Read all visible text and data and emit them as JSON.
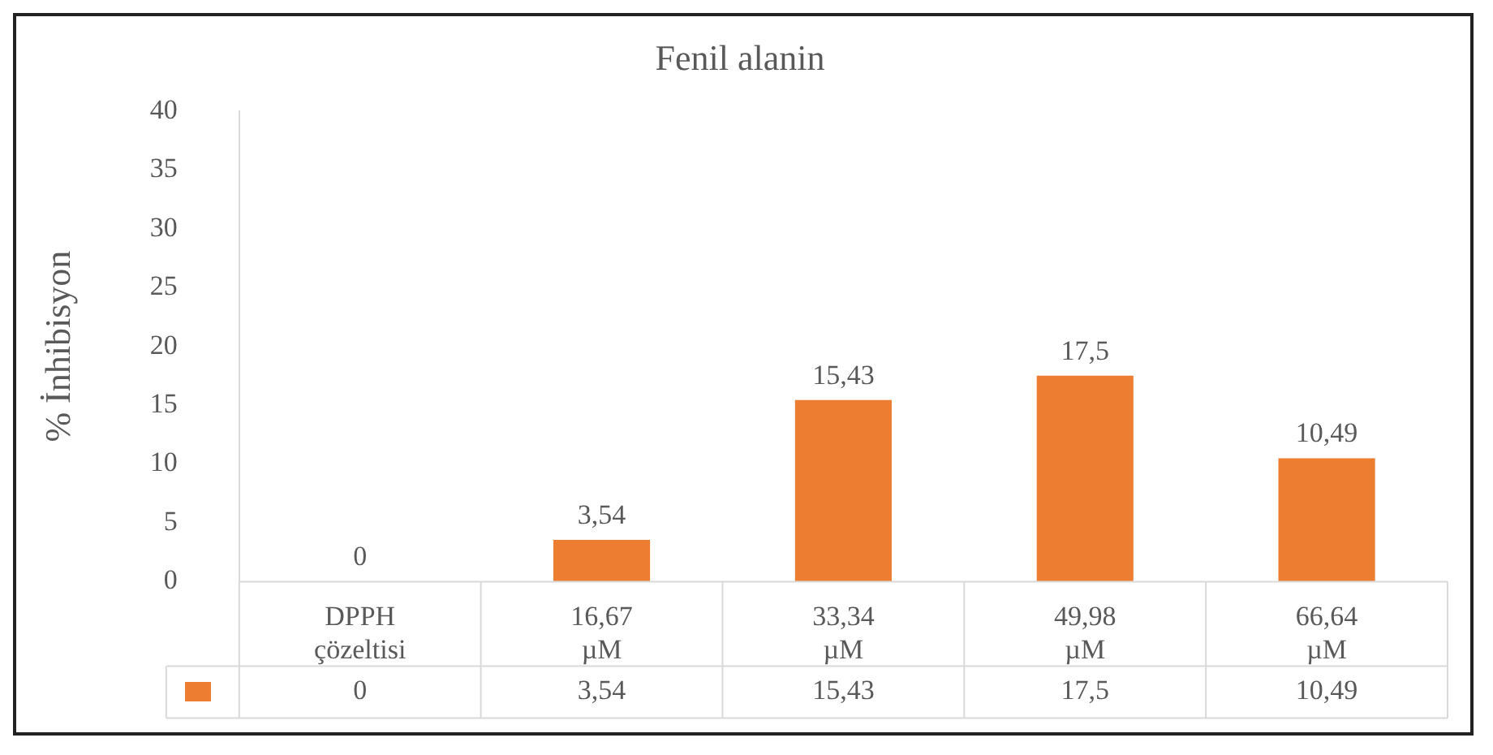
{
  "chart_data": {
    "type": "bar",
    "title": "Fenil alanin",
    "ylabel": "% İnhibisyon",
    "categories": [
      "DPPH çözeltisi",
      "16,67 µM",
      "33,34 µM",
      "49,98 µM",
      "66,64 µM"
    ],
    "values": [
      0,
      3.54,
      15.43,
      17.5,
      10.49
    ],
    "value_labels": [
      "0",
      "3,54",
      "15,43",
      "17,5",
      "10,49"
    ],
    "color": "#ed7d31",
    "ylim": [
      0,
      40
    ],
    "yticks": [
      0,
      5,
      10,
      15,
      20,
      25,
      30,
      35,
      40
    ],
    "grid": false,
    "legend": false
  }
}
